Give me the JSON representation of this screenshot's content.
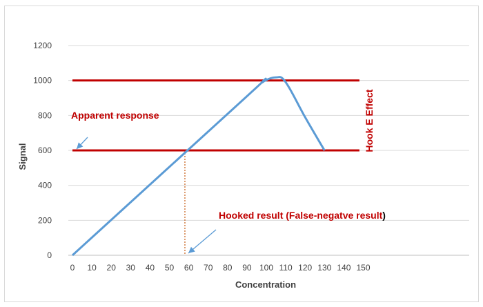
{
  "chart_data": {
    "type": "line",
    "title": "",
    "xlabel": "Concentration",
    "ylabel": "Signal",
    "xlim": [
      0,
      150
    ],
    "ylim": [
      0,
      1200
    ],
    "x_ticks": [
      "0",
      "10",
      "20",
      "30",
      "40",
      "50",
      "60",
      "70",
      "80",
      "90",
      "100",
      "110",
      "120",
      "130",
      "140",
      "150"
    ],
    "y_ticks": [
      "0",
      "200",
      "400",
      "600",
      "800",
      "1000",
      "1200"
    ],
    "grid": "horizontal",
    "series": [
      {
        "color": "#5b9bd5",
        "points": [
          [
            0,
            0
          ],
          [
            90,
            910
          ],
          [
            98,
            990
          ],
          [
            105,
            1018
          ],
          [
            110,
            990
          ],
          [
            120,
            790
          ],
          [
            130,
            600
          ]
        ]
      }
    ],
    "reference_lines": [
      {
        "y": 1000,
        "x_from": 0,
        "x_to": 148,
        "color": "#c00000"
      },
      {
        "y": 600,
        "x_from": 0,
        "x_to": 148,
        "color": "#c00000"
      }
    ],
    "drop_line": {
      "x": 58,
      "y_from": 0,
      "y_to": 600,
      "color": "#c55a11"
    },
    "annotations": {
      "apparent_response": "Apparent response",
      "hooked_result_red": "Hooked result (False-negatve result",
      "hooked_result_close": ")",
      "hook_effect": "Hook E Effect"
    },
    "colors": {
      "line": "#5b9bd5",
      "reference": "#c00000",
      "arrow": "#5b9bd5",
      "annotation": "#c00000"
    }
  }
}
